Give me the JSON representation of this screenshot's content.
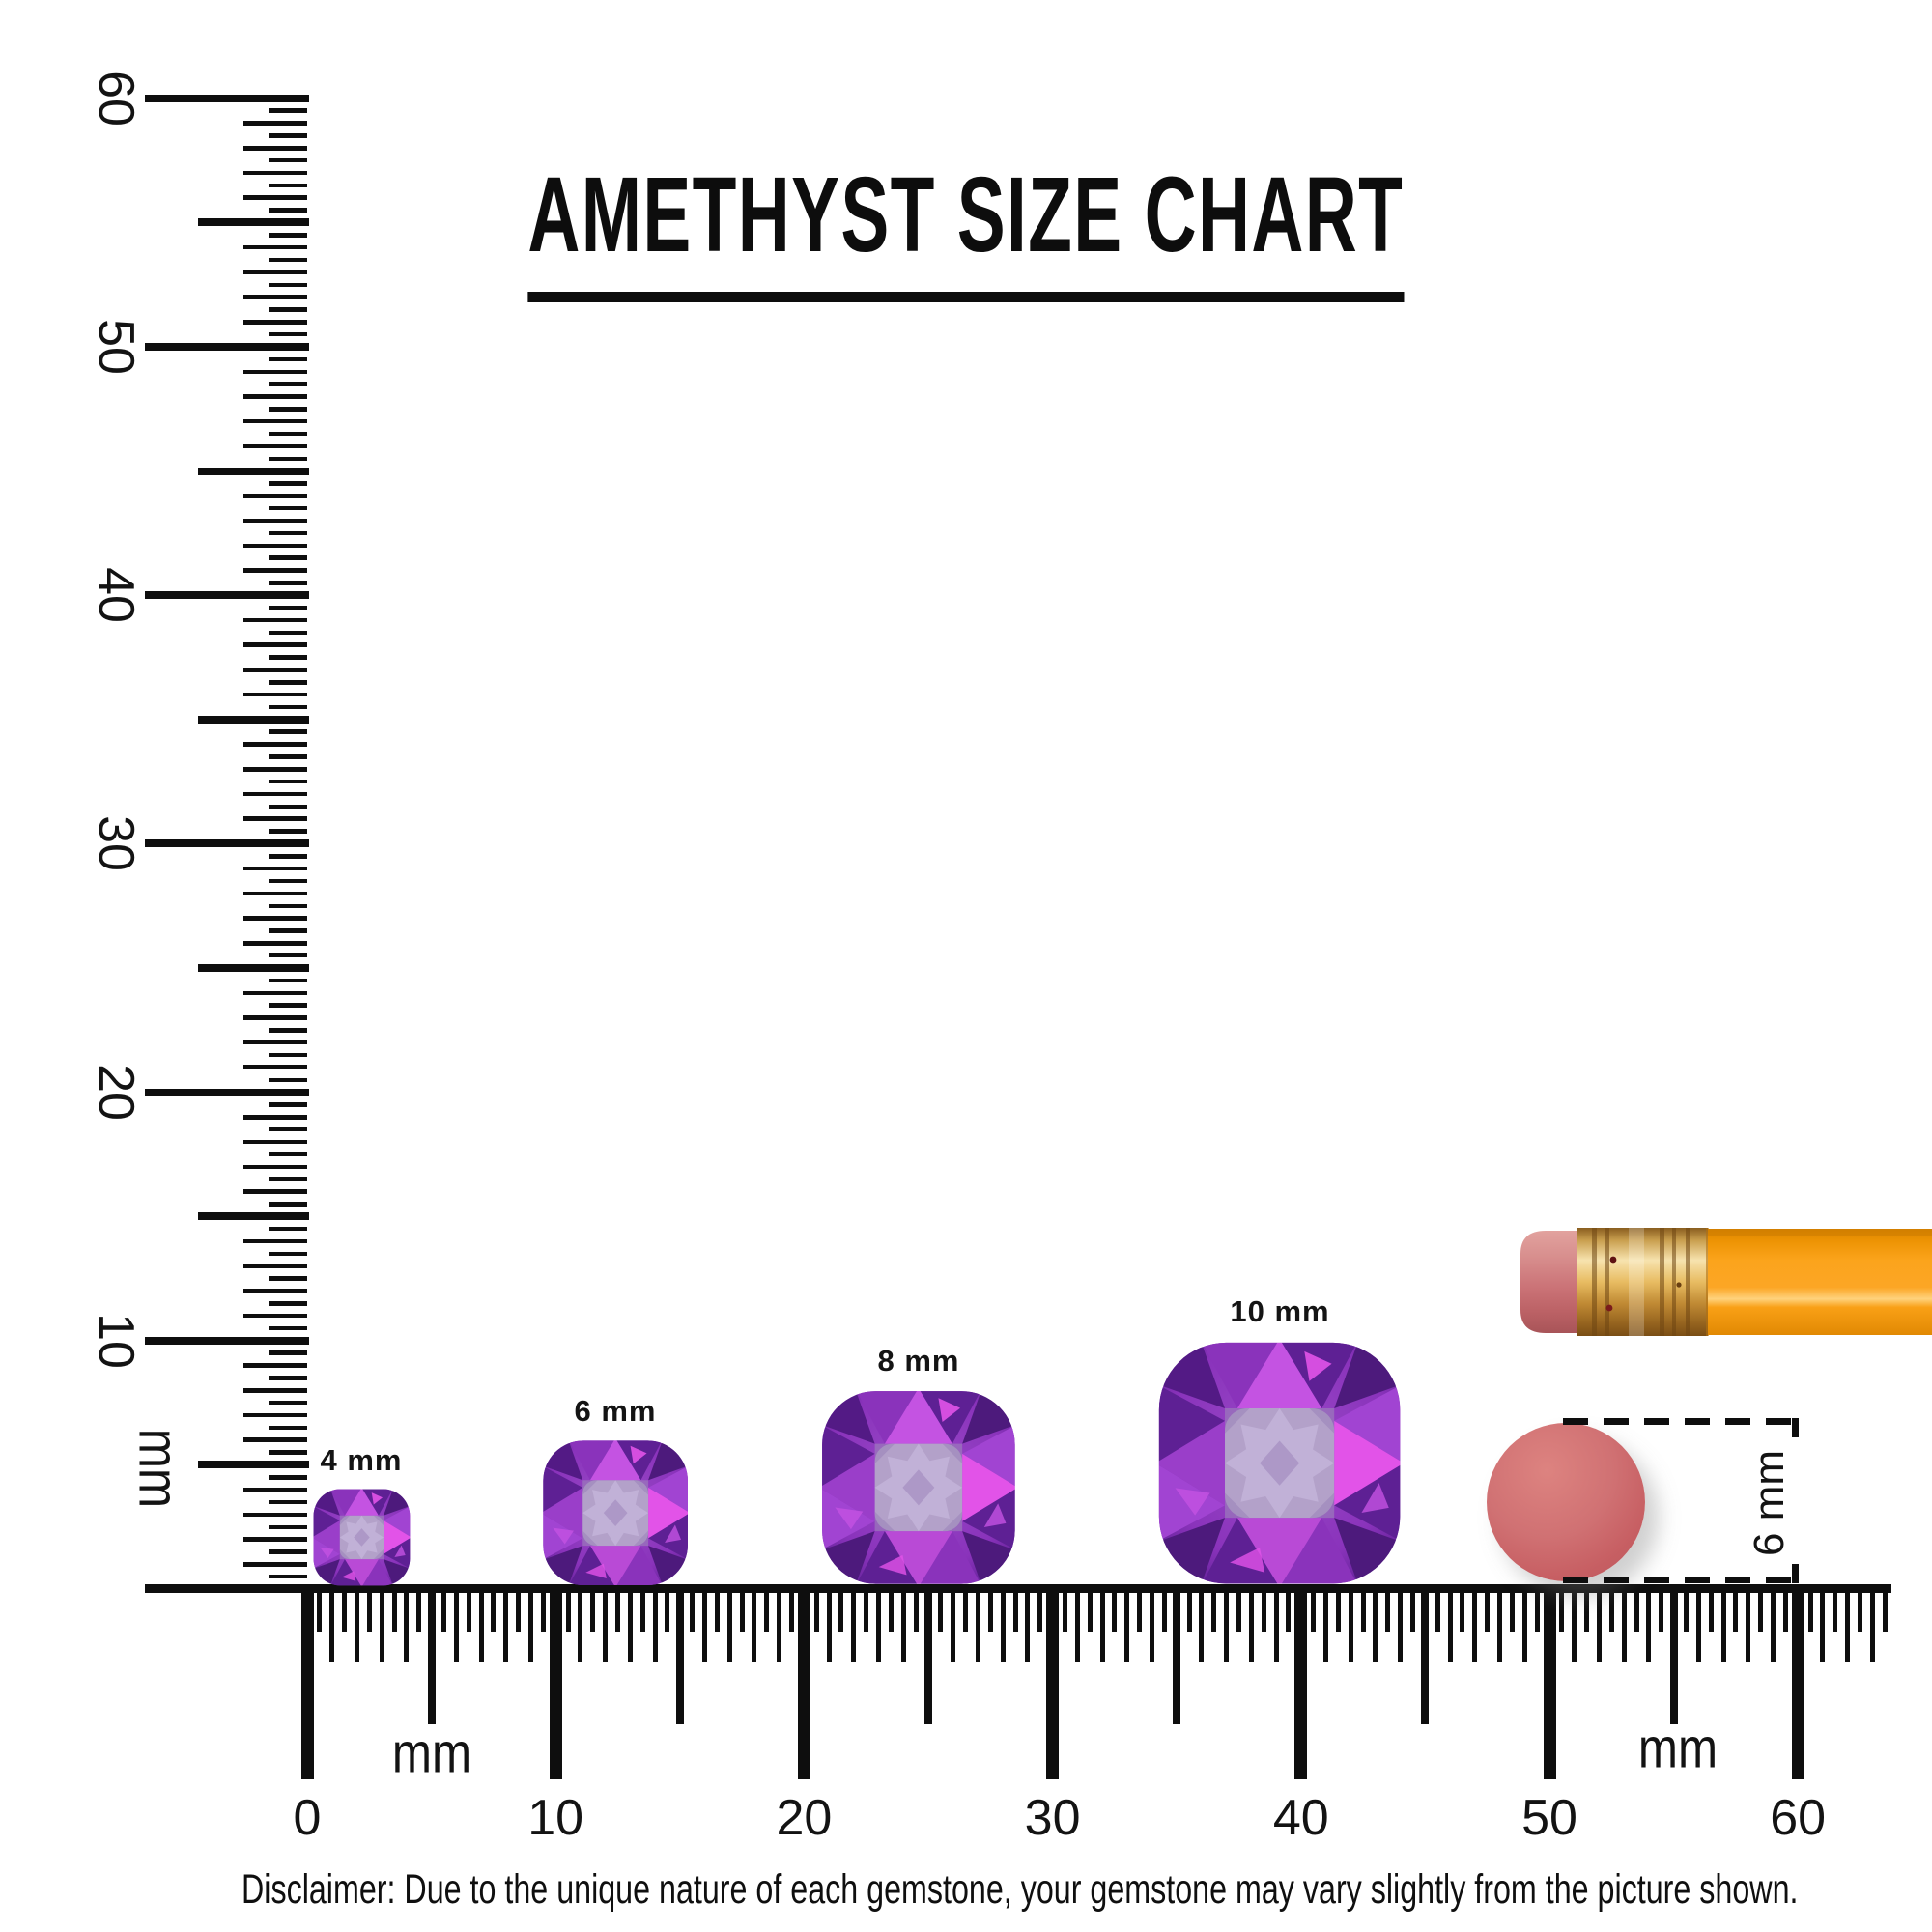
{
  "title": "AMETHYST SIZE CHART",
  "disclaimer": "Disclaimer: Due to the unique nature of each gemstone, your gemstone may vary slightly from the picture shown.",
  "rulers": {
    "unit": "mm",
    "vertical": {
      "tick_labels": [
        "10",
        "20",
        "30",
        "40",
        "50",
        "60"
      ],
      "unit_label": "mm",
      "range_mm": [
        0,
        60
      ]
    },
    "horizontal": {
      "tick_labels": [
        "0",
        "10",
        "20",
        "30",
        "40",
        "50",
        "60"
      ],
      "unit_labels": [
        "mm",
        "mm"
      ],
      "range_mm": [
        0,
        63.5
      ]
    }
  },
  "gems": [
    {
      "label": "4 mm",
      "size_mm": 4
    },
    {
      "label": "6 mm",
      "size_mm": 6
    },
    {
      "label": "8 mm",
      "size_mm": 8
    },
    {
      "label": "10 mm",
      "size_mm": 10
    }
  ],
  "eraser_comparison": {
    "label": "6 mm",
    "diameter_mm": 6
  },
  "colors": {
    "ink": "#0e0e0e",
    "amethyst_dark": "#4d1a7c",
    "amethyst_deep": "#5e2094",
    "amethyst_mid": "#8a33bb",
    "amethyst_violet": "#a144d2",
    "amethyst_bright": "#c453e2",
    "amethyst_magenta": "#e253e8",
    "amethyst_table": "#b3a1c9",
    "amethyst_star": "#c1b1d7",
    "eraser_disc": "#c96164",
    "pencil_body": "#f89d0f",
    "pencil_eraser": "#cc787b",
    "pencil_ferrule": "#e0ae5a"
  }
}
